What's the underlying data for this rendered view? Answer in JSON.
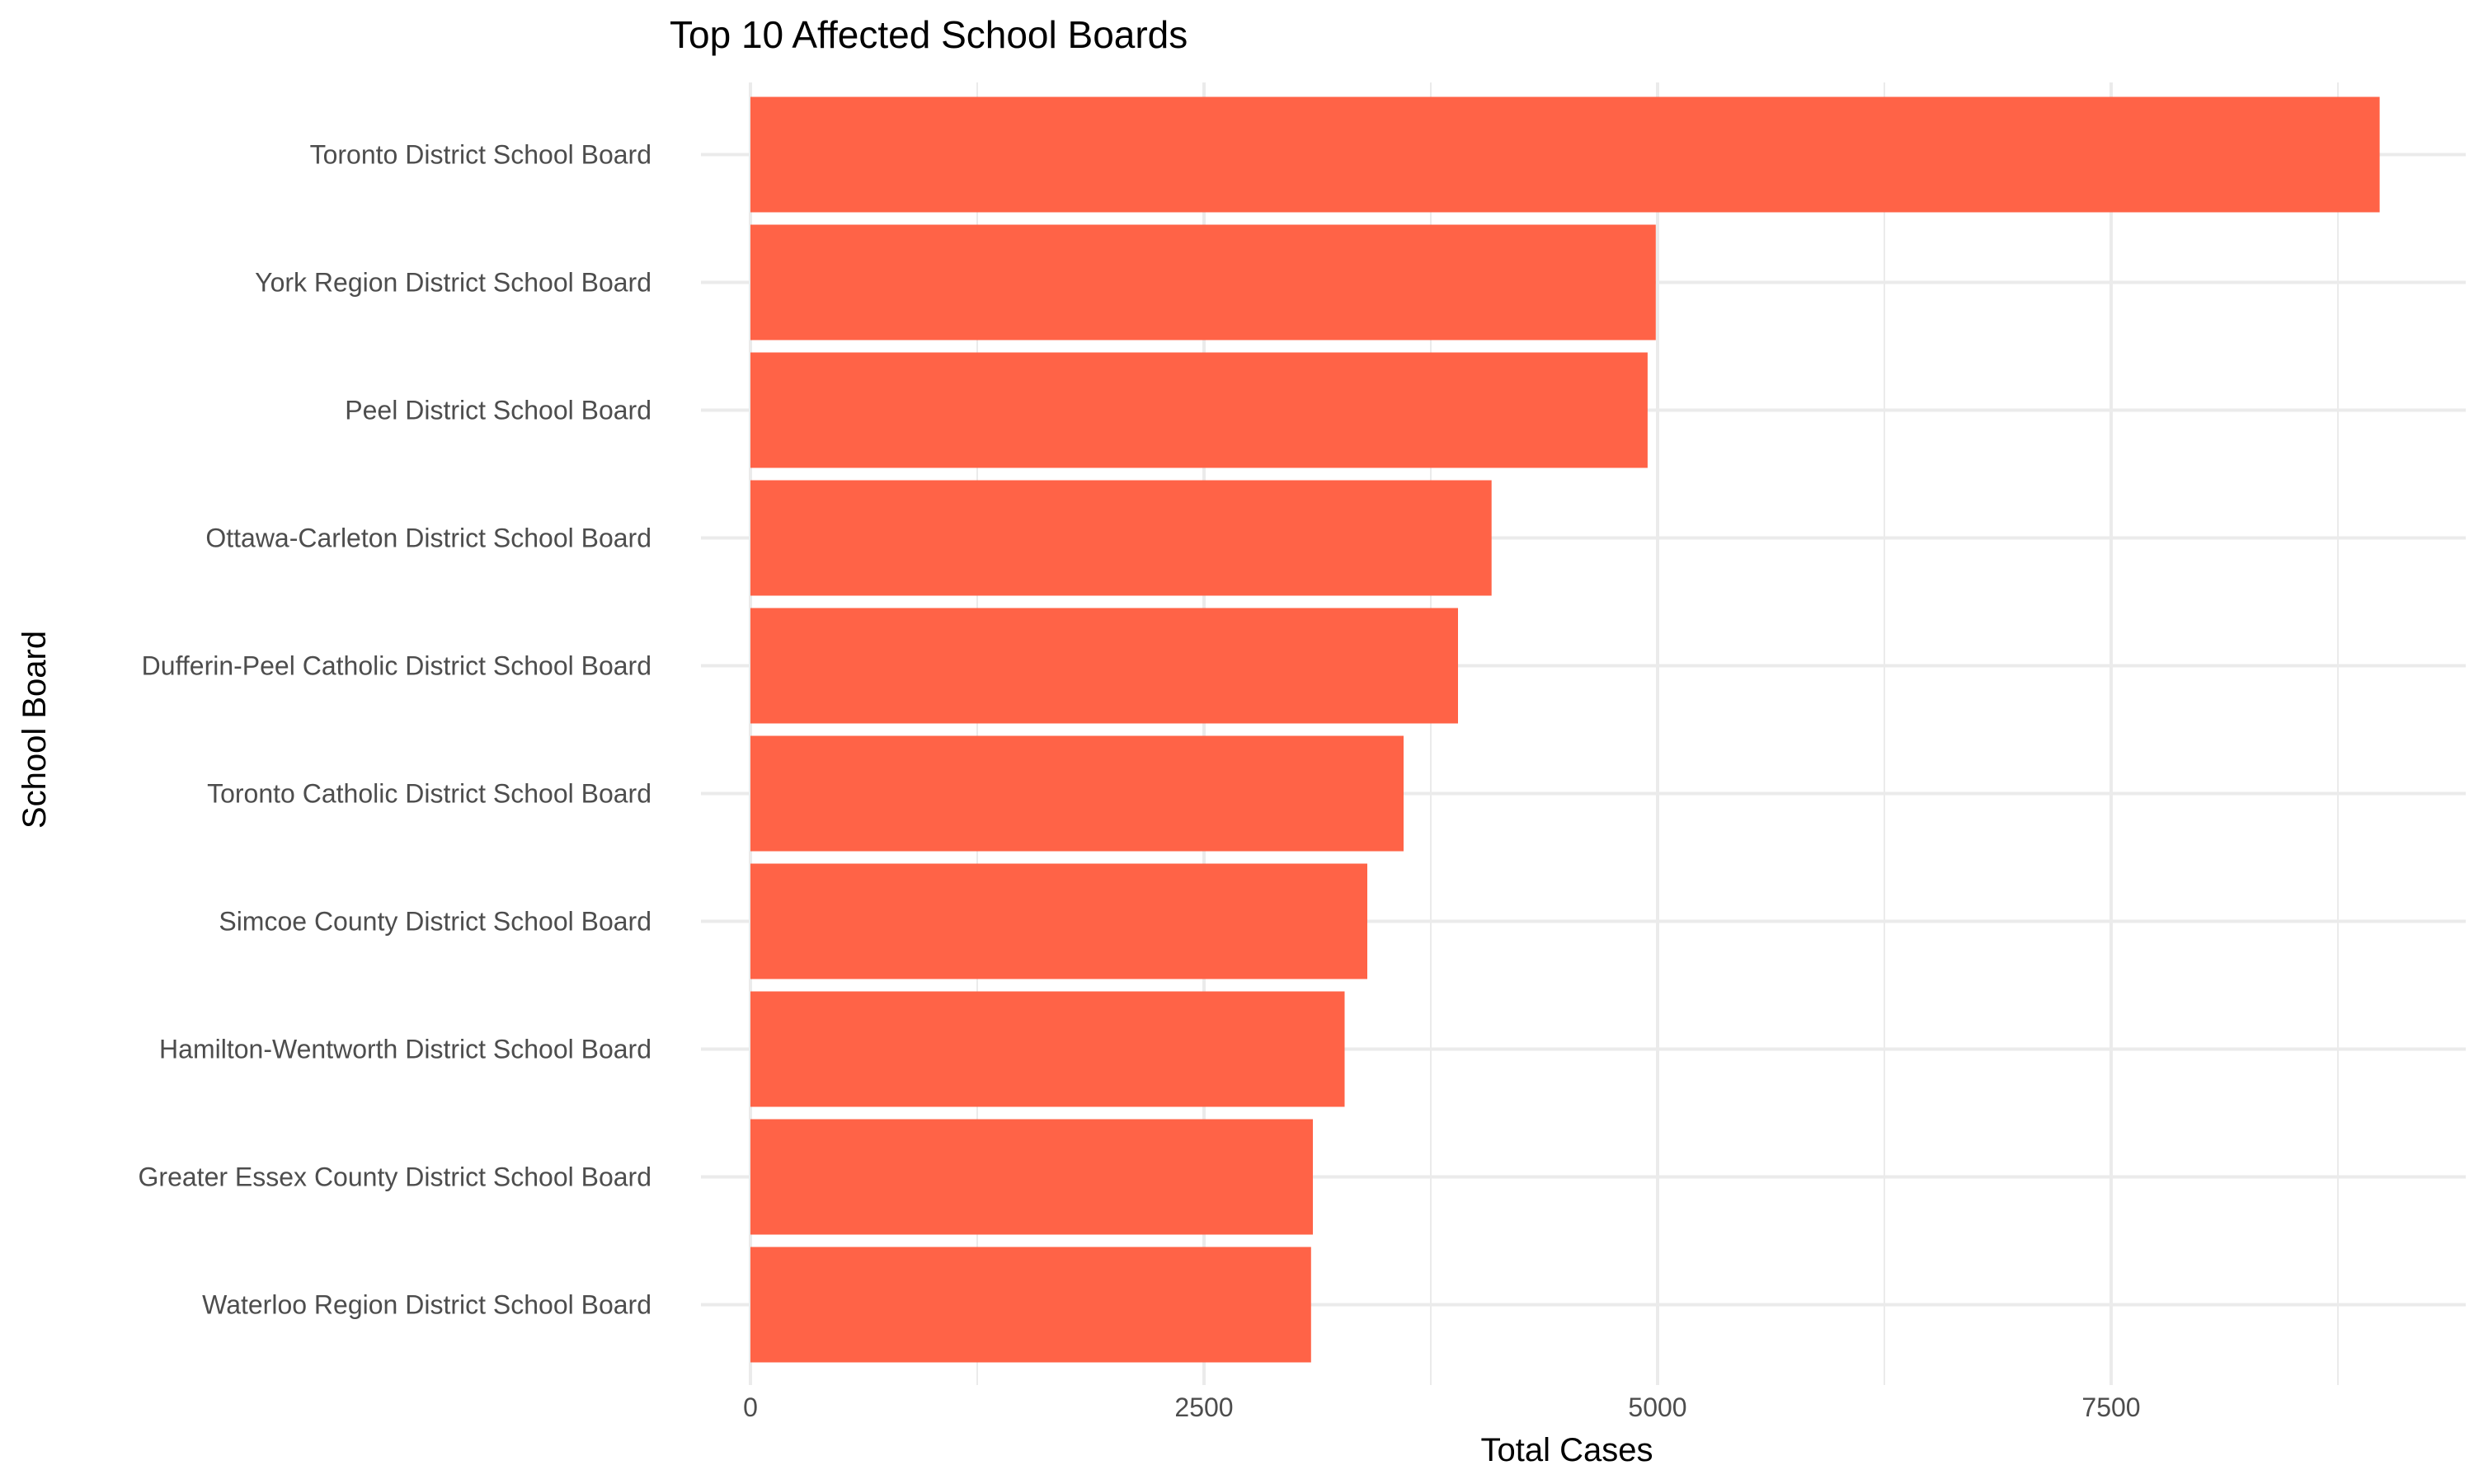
{
  "chart_data": {
    "type": "bar",
    "orientation": "horizontal",
    "title": "Top 10 Affected School Boards",
    "xlabel": "Total Cases",
    "ylabel": "School Board",
    "categories": [
      "Toronto District School Board",
      "York Region District School Board",
      "Peel District School Board",
      "Ottawa-Carleton District School Board",
      "Dufferin-Peel Catholic District School Board",
      "Toronto Catholic District School Board",
      "Simcoe County District School Board",
      "Hamilton-Wentworth District School Board",
      "Greater Essex County District School Board",
      "Waterloo Region District School Board"
    ],
    "values": [
      8980,
      4990,
      4945,
      4085,
      3900,
      3600,
      3400,
      3275,
      3100,
      3090
    ],
    "xlim": [
      0,
      9430
    ],
    "xticks": [
      0,
      2500,
      5000,
      7500
    ],
    "xtick_labels": [
      "0",
      "2500",
      "5000",
      "7500"
    ],
    "grid": true,
    "legend": "none",
    "bar_color": "#FF6347",
    "grid_color": "#EBEBEB"
  }
}
